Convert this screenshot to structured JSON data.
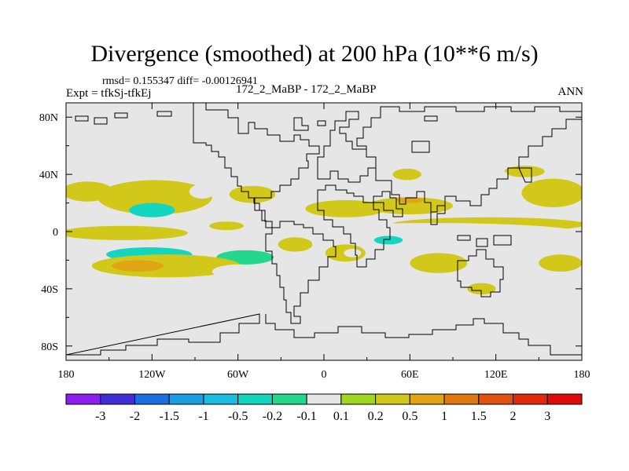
{
  "title": "Divergence (smoothed) at 200 hPa (10**6 m/s)",
  "stats": {
    "text": "rmsd= 0.155347 diff= -0.00126941"
  },
  "expt": "Expt = tfkSj-tfkEj",
  "center_label": "172_2_MaBP - 172_2_MaBP",
  "season": "ANN",
  "chart_data": {
    "type": "heatmap",
    "title": "Divergence (smoothed) at 200 hPa (10**6 m/s)",
    "x_range": [
      -180,
      180
    ],
    "y_range": [
      -90,
      90
    ],
    "x_ticks": [
      {
        "value": -180,
        "label": "180"
      },
      {
        "value": -120,
        "label": "120W"
      },
      {
        "value": -60,
        "label": "60W"
      },
      {
        "value": 0,
        "label": "0"
      },
      {
        "value": 60,
        "label": "60E"
      },
      {
        "value": 120,
        "label": "120E"
      },
      {
        "value": 180,
        "label": "180"
      }
    ],
    "y_ticks": [
      {
        "value": 80,
        "label": "80N"
      },
      {
        "value": 40,
        "label": "40N"
      },
      {
        "value": 0,
        "label": "0"
      },
      {
        "value": -40,
        "label": "40S"
      },
      {
        "value": -80,
        "label": "80S"
      }
    ],
    "colorbar": {
      "levels": [
        "-3",
        "-2",
        "-1.5",
        "-1",
        "-0.5",
        "-0.2",
        "-0.1",
        "0.1",
        "0.2",
        "0.5",
        "1",
        "1.5",
        "2",
        "3"
      ],
      "colors": [
        "#8c1cf0",
        "#3e2ed8",
        "#1a6ee0",
        "#1c9ee6",
        "#18bde0",
        "#12d6c0",
        "#22d88c",
        "#e6e6e6",
        "#9fd61e",
        "#d2c81a",
        "#e0a414",
        "#e07a10",
        "#e0500e",
        "#e0280c",
        "#e00a0a"
      ]
    },
    "background_color": "#e6e6e6",
    "regions": [
      {
        "value": 0.2,
        "lon": -165,
        "lat": 28,
        "rlon": 18,
        "rlat": 7
      },
      {
        "value": 0.2,
        "lon": -118,
        "lat": 24,
        "rlon": 40,
        "rlat": 12
      },
      {
        "value": -0.5,
        "lon": -120,
        "lat": 15,
        "rlon": 16,
        "rlat": 5
      },
      {
        "value": -0.1,
        "lon": -85,
        "lat": 28,
        "rlon": 9,
        "rlat": 5
      },
      {
        "value": 0.2,
        "lon": -50,
        "lat": 26,
        "rlon": 16,
        "rlat": 6
      },
      {
        "value": -0.1,
        "lon": -48,
        "lat": 12,
        "rlon": 16,
        "rlat": 4
      },
      {
        "value": -0.1,
        "lon": -27,
        "lat": 12,
        "rlon": 7,
        "rlat": 4
      },
      {
        "value": 0.2,
        "lon": -140,
        "lat": -1,
        "rlon": 45,
        "rlat": 5
      },
      {
        "value": 0.2,
        "lon": -68,
        "lat": 4,
        "rlon": 12,
        "rlat": 3
      },
      {
        "value": 0.2,
        "lon": 115,
        "lat": 5,
        "rlon": 68,
        "rlat": 5
      },
      {
        "value": -0.1,
        "lon": 75,
        "lat": -1,
        "rlon": 105,
        "rlat": 7
      },
      {
        "value": -0.5,
        "lon": 45,
        "lat": -6,
        "rlon": 10,
        "rlat": 3
      },
      {
        "value": 0.2,
        "lon": 15,
        "lat": 16,
        "rlon": 28,
        "rlat": 6
      },
      {
        "value": 0.2,
        "lon": 60,
        "lat": 18,
        "rlon": 30,
        "rlat": 6
      },
      {
        "value": 0.5,
        "lon": 60,
        "lat": 22,
        "rlon": 10,
        "rlat": 2
      },
      {
        "value": -0.1,
        "lon": 30,
        "lat": 33,
        "rlon": 16,
        "rlat": 6
      },
      {
        "value": -0.1,
        "lon": 10,
        "lat": 46,
        "rlon": 4,
        "rlat": 3
      },
      {
        "value": -0.1,
        "lon": 75,
        "lat": 40,
        "rlon": 16,
        "rlat": 6
      },
      {
        "value": -0.1,
        "lon": 110,
        "lat": 30,
        "rlon": 20,
        "rlat": 5
      },
      {
        "value": 0.2,
        "lon": 160,
        "lat": 27,
        "rlon": 22,
        "rlat": 10
      },
      {
        "value": 0.2,
        "lon": 140,
        "lat": 42,
        "rlon": 14,
        "rlat": 4
      },
      {
        "value": -0.1,
        "lon": 120,
        "lat": 40,
        "rlon": 8,
        "rlat": 3
      },
      {
        "value": 0.2,
        "lon": 58,
        "lat": 40,
        "rlon": 10,
        "rlat": 4
      },
      {
        "value": -0.1,
        "lon": -120,
        "lat": -12,
        "rlon": 60,
        "rlat": 6
      },
      {
        "value": -0.5,
        "lon": -122,
        "lat": -16,
        "rlon": 30,
        "rlat": 5
      },
      {
        "value": -0.2,
        "lon": -55,
        "lat": -18,
        "rlon": 20,
        "rlat": 5
      },
      {
        "value": 0.2,
        "lon": -110,
        "lat": -24,
        "rlon": 52,
        "rlat": 8
      },
      {
        "value": 0.5,
        "lon": -130,
        "lat": -24,
        "rlon": 18,
        "rlat": 4
      },
      {
        "value": -0.1,
        "lon": -60,
        "lat": -28,
        "rlon": 18,
        "rlat": 5
      },
      {
        "value": 0.2,
        "lon": -20,
        "lat": -9,
        "rlon": 12,
        "rlat": 5
      },
      {
        "value": 0.2,
        "lon": 15,
        "lat": -15,
        "rlon": 14,
        "rlat": 6
      },
      {
        "value": 0.2,
        "lon": 80,
        "lat": -22,
        "rlon": 20,
        "rlat": 7
      },
      {
        "value": 0.2,
        "lon": 165,
        "lat": -22,
        "rlon": 15,
        "rlat": 6
      },
      {
        "value": -0.1,
        "lon": 55,
        "lat": -15,
        "rlon": 12,
        "rlat": 4
      },
      {
        "value": -0.1,
        "lon": 20,
        "lat": -15,
        "rlon": 6,
        "rlat": 3
      },
      {
        "value": -0.1,
        "lon": 65,
        "lat": -39,
        "rlon": 10,
        "rlat": 4
      },
      {
        "value": 0.2,
        "lon": 110,
        "lat": -40,
        "rlon": 10,
        "rlat": 4
      },
      {
        "value": -0.1,
        "lon": -10,
        "lat": -32,
        "rlon": 7,
        "rlat": 3
      },
      {
        "value": -0.1,
        "lon": -45,
        "lat": -39,
        "rlon": 5,
        "rlat": 3
      }
    ],
    "coastline_color": "#000000"
  }
}
